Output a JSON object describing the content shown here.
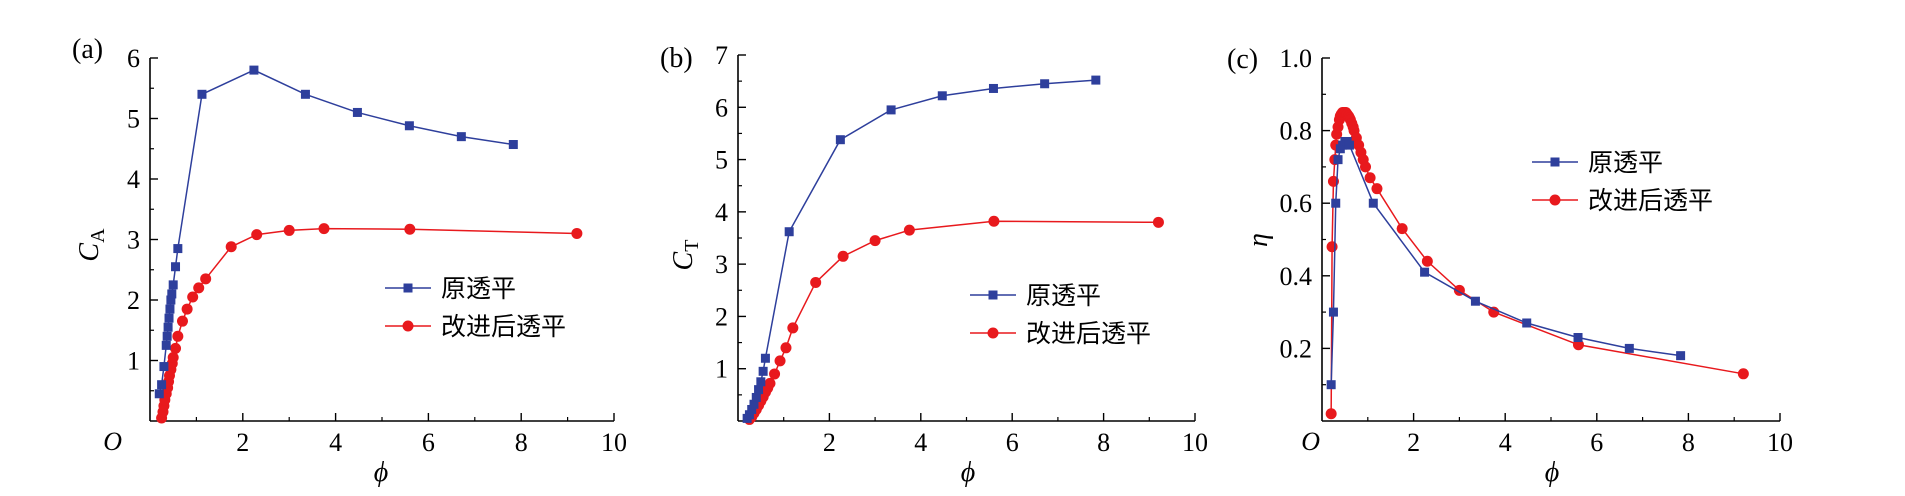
{
  "colors": {
    "blue": "#2E3F9C",
    "red": "#E8191D",
    "axis": "#000000"
  },
  "origin_label": "O",
  "charts": [
    {
      "panel_label": "(a)",
      "ylabel_main": "C",
      "ylabel_sub": "A",
      "xlabel": "ϕ",
      "legend": [
        "原透平",
        "改进后透平"
      ]
    },
    {
      "panel_label": "(b)",
      "ylabel_main": "C",
      "ylabel_sub": "T",
      "xlabel": "ϕ",
      "legend": [
        "原透平",
        "改进后透平"
      ]
    },
    {
      "panel_label": "(c)",
      "ylabel_main": "η",
      "ylabel_sub": "",
      "xlabel": "ϕ",
      "legend": [
        "原透平",
        "改进后透平"
      ]
    }
  ],
  "chart_data": [
    {
      "type": "line",
      "xlim": [
        0,
        10
      ],
      "ylim": [
        0,
        6
      ],
      "xticks": [
        2,
        4,
        6,
        8,
        10
      ],
      "yticks": [
        1,
        2,
        3,
        4,
        5,
        6
      ],
      "series": [
        {
          "name": "原透平",
          "color": "blue",
          "marker": "square",
          "x": [
            0.2,
            0.25,
            0.3,
            0.35,
            0.37,
            0.39,
            0.41,
            0.43,
            0.45,
            0.47,
            0.5,
            0.55,
            0.6,
            1.12,
            2.24,
            3.35,
            4.47,
            5.59,
            6.71,
            7.83
          ],
          "y": [
            0.45,
            0.6,
            0.9,
            1.25,
            1.4,
            1.55,
            1.7,
            1.85,
            2.0,
            2.1,
            2.25,
            2.55,
            2.85,
            5.4,
            5.8,
            5.4,
            5.1,
            4.88,
            4.7,
            4.57
          ]
        },
        {
          "name": "改进后透平",
          "color": "red",
          "marker": "circle",
          "x": [
            0.25,
            0.28,
            0.3,
            0.32,
            0.35,
            0.38,
            0.4,
            0.42,
            0.45,
            0.48,
            0.5,
            0.55,
            0.6,
            0.7,
            0.8,
            0.92,
            1.05,
            1.2,
            1.75,
            2.3,
            3.0,
            3.75,
            5.6,
            9.2
          ],
          "y": [
            0.05,
            0.15,
            0.25,
            0.35,
            0.45,
            0.55,
            0.65,
            0.75,
            0.85,
            0.95,
            1.05,
            1.2,
            1.4,
            1.65,
            1.85,
            2.05,
            2.2,
            2.35,
            2.88,
            3.08,
            3.15,
            3.18,
            3.17,
            3.1
          ]
        }
      ]
    },
    {
      "type": "line",
      "xlim": [
        0,
        10
      ],
      "ylim": [
        0,
        7
      ],
      "xticks": [
        2,
        4,
        6,
        8,
        10
      ],
      "yticks": [
        1,
        2,
        3,
        4,
        5,
        6,
        7
      ],
      "series": [
        {
          "name": "原透平",
          "color": "blue",
          "marker": "square",
          "x": [
            0.2,
            0.25,
            0.3,
            0.35,
            0.4,
            0.45,
            0.5,
            0.55,
            0.6,
            1.12,
            2.24,
            3.35,
            4.47,
            5.59,
            6.71,
            7.83
          ],
          "y": [
            0.05,
            0.12,
            0.22,
            0.32,
            0.45,
            0.6,
            0.75,
            0.95,
            1.2,
            3.62,
            5.38,
            5.95,
            6.22,
            6.36,
            6.45,
            6.52
          ]
        },
        {
          "name": "改进后透平",
          "color": "red",
          "marker": "circle",
          "x": [
            0.25,
            0.3,
            0.35,
            0.4,
            0.45,
            0.5,
            0.55,
            0.6,
            0.65,
            0.7,
            0.8,
            0.92,
            1.05,
            1.2,
            1.7,
            2.3,
            3.0,
            3.75,
            5.6,
            9.2
          ],
          "y": [
            0.03,
            0.08,
            0.15,
            0.22,
            0.3,
            0.38,
            0.46,
            0.55,
            0.63,
            0.72,
            0.9,
            1.15,
            1.4,
            1.78,
            2.65,
            3.15,
            3.45,
            3.65,
            3.82,
            3.8
          ]
        }
      ]
    },
    {
      "type": "line",
      "xlim": [
        0,
        10
      ],
      "ylim": [
        0,
        1.0
      ],
      "xticks": [
        2,
        4,
        6,
        8,
        10
      ],
      "yticks": [
        0.2,
        0.4,
        0.6,
        0.8,
        1.0
      ],
      "series": [
        {
          "name": "原透平",
          "color": "blue",
          "marker": "square",
          "x": [
            0.2,
            0.25,
            0.3,
            0.35,
            0.4,
            0.45,
            0.5,
            0.55,
            0.6,
            1.12,
            2.24,
            3.35,
            4.47,
            5.59,
            6.71,
            7.83
          ],
          "y": [
            0.1,
            0.3,
            0.6,
            0.72,
            0.75,
            0.76,
            0.77,
            0.77,
            0.76,
            0.6,
            0.41,
            0.33,
            0.27,
            0.23,
            0.2,
            0.18
          ]
        },
        {
          "name": "改进后透平",
          "color": "red",
          "marker": "circle",
          "x": [
            0.2,
            0.22,
            0.25,
            0.28,
            0.3,
            0.32,
            0.35,
            0.38,
            0.4,
            0.42,
            0.45,
            0.48,
            0.5,
            0.52,
            0.55,
            0.58,
            0.6,
            0.62,
            0.65,
            0.68,
            0.7,
            0.75,
            0.8,
            0.85,
            0.9,
            0.95,
            1.05,
            1.2,
            1.75,
            2.3,
            3.0,
            3.75,
            5.6,
            9.2
          ],
          "y": [
            0.02,
            0.48,
            0.66,
            0.72,
            0.76,
            0.79,
            0.81,
            0.83,
            0.84,
            0.845,
            0.85,
            0.85,
            0.85,
            0.85,
            0.845,
            0.84,
            0.835,
            0.83,
            0.82,
            0.81,
            0.8,
            0.78,
            0.76,
            0.74,
            0.72,
            0.7,
            0.67,
            0.64,
            0.53,
            0.44,
            0.36,
            0.3,
            0.21,
            0.13
          ]
        }
      ]
    }
  ]
}
